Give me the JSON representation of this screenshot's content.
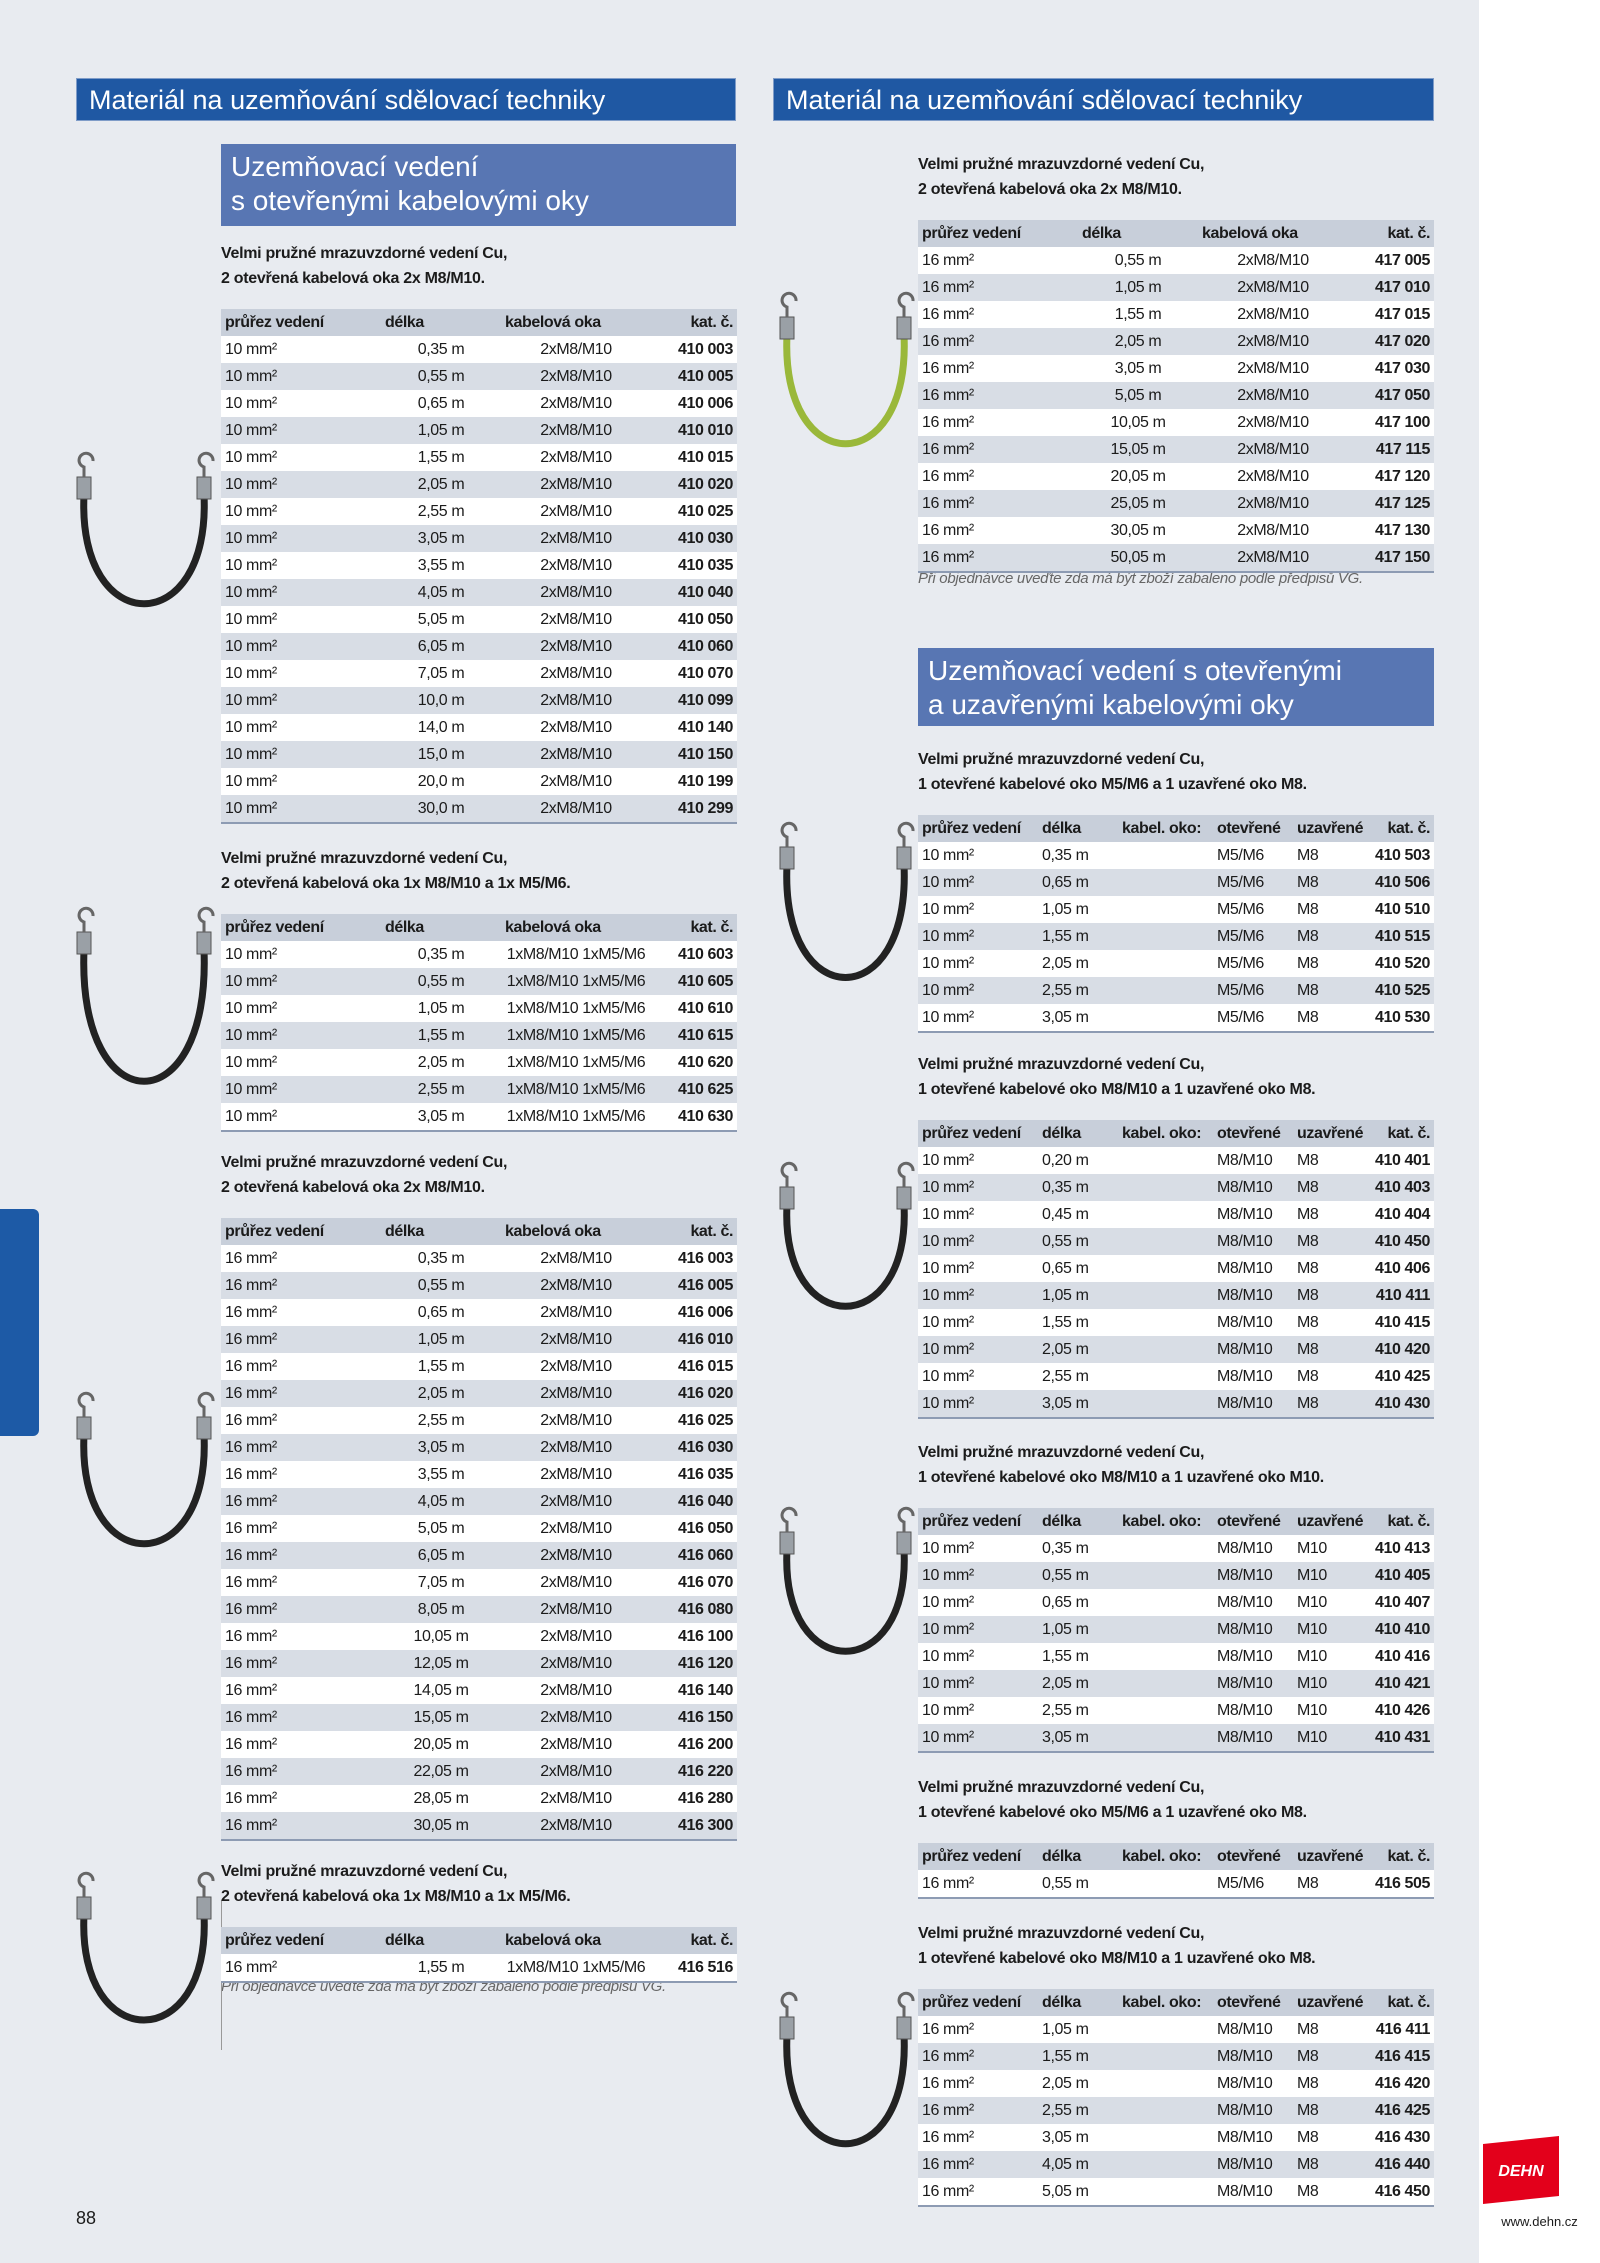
{
  "header": {
    "left_title": "Materiál na uzemňování sdělovací techniky",
    "right_title": "Materiál na uzemňování sdělovací techniky"
  },
  "left": {
    "heading": [
      "Uzemňovací vedení",
      "s otevřenými kabelovými oky"
    ],
    "tables": [
      {
        "description": [
          "Velmi pružné mrazuvzdorné vedení Cu,",
          "2 otevřená kabelová oka 2x M8/M10."
        ],
        "columns": [
          "průřez vedení",
          "délka",
          "kabelová oka",
          "kat. č."
        ],
        "rows": [
          [
            "10 mm²",
            "0,35 m",
            "2xM8/M10",
            "410 003"
          ],
          [
            "10 mm²",
            "0,55 m",
            "2xM8/M10",
            "410 005"
          ],
          [
            "10 mm²",
            "0,65 m",
            "2xM8/M10",
            "410 006"
          ],
          [
            "10 mm²",
            "1,05 m",
            "2xM8/M10",
            "410 010"
          ],
          [
            "10 mm²",
            "1,55 m",
            "2xM8/M10",
            "410 015"
          ],
          [
            "10 mm²",
            "2,05 m",
            "2xM8/M10",
            "410 020"
          ],
          [
            "10 mm²",
            "2,55 m",
            "2xM8/M10",
            "410 025"
          ],
          [
            "10 mm²",
            "3,05 m",
            "2xM8/M10",
            "410 030"
          ],
          [
            "10 mm²",
            "3,55 m",
            "2xM8/M10",
            "410 035"
          ],
          [
            "10 mm²",
            "4,05 m",
            "2xM8/M10",
            "410 040"
          ],
          [
            "10 mm²",
            "5,05 m",
            "2xM8/M10",
            "410 050"
          ],
          [
            "10 mm²",
            "6,05 m",
            "2xM8/M10",
            "410 060"
          ],
          [
            "10 mm²",
            "7,05 m",
            "2xM8/M10",
            "410 070"
          ],
          [
            "10 mm²",
            "10,0 m",
            "2xM8/M10",
            "410 099"
          ],
          [
            "10 mm²",
            "14,0 m",
            "2xM8/M10",
            "410 140"
          ],
          [
            "10 mm²",
            "15,0 m",
            "2xM8/M10",
            "410 150"
          ],
          [
            "10 mm²",
            "20,0 m",
            "2xM8/M10",
            "410 199"
          ],
          [
            "10 mm²",
            "30,0 m",
            "2xM8/M10",
            "410 299"
          ]
        ]
      },
      {
        "description": [
          "Velmi pružné mrazuvzdorné vedení Cu,",
          "2 otevřená kabelová oka 1x M8/M10 a 1x M5/M6."
        ],
        "columns": [
          "průřez vedení",
          "délka",
          "kabelová oka",
          "kat. č."
        ],
        "rows": [
          [
            "10 mm²",
            "0,35 m",
            "1xM8/M10 1xM5/M6",
            "410 603"
          ],
          [
            "10 mm²",
            "0,55 m",
            "1xM8/M10 1xM5/M6",
            "410 605"
          ],
          [
            "10 mm²",
            "1,05 m",
            "1xM8/M10 1xM5/M6",
            "410 610"
          ],
          [
            "10 mm²",
            "1,55 m",
            "1xM8/M10 1xM5/M6",
            "410 615"
          ],
          [
            "10 mm²",
            "2,05 m",
            "1xM8/M10 1xM5/M6",
            "410 620"
          ],
          [
            "10 mm²",
            "2,55 m",
            "1xM8/M10 1xM5/M6",
            "410 625"
          ],
          [
            "10 mm²",
            "3,05 m",
            "1xM8/M10 1xM5/M6",
            "410 630"
          ]
        ]
      },
      {
        "description": [
          "Velmi pružné mrazuvzdorné vedení Cu,",
          "2 otevřená kabelová oka 2x M8/M10."
        ],
        "columns": [
          "průřez vedení",
          "délka",
          "kabelová oka",
          "kat. č."
        ],
        "rows": [
          [
            "16 mm²",
            "0,35 m",
            "2xM8/M10",
            "416 003"
          ],
          [
            "16 mm²",
            "0,55 m",
            "2xM8/M10",
            "416 005"
          ],
          [
            "16 mm²",
            "0,65 m",
            "2xM8/M10",
            "416 006"
          ],
          [
            "16 mm²",
            "1,05 m",
            "2xM8/M10",
            "416 010"
          ],
          [
            "16 mm²",
            "1,55 m",
            "2xM8/M10",
            "416 015"
          ],
          [
            "16 mm²",
            "2,05 m",
            "2xM8/M10",
            "416 020"
          ],
          [
            "16 mm²",
            "2,55 m",
            "2xM8/M10",
            "416 025"
          ],
          [
            "16 mm²",
            "3,05 m",
            "2xM8/M10",
            "416 030"
          ],
          [
            "16 mm²",
            "3,55 m",
            "2xM8/M10",
            "416 035"
          ],
          [
            "16 mm²",
            "4,05 m",
            "2xM8/M10",
            "416 040"
          ],
          [
            "16 mm²",
            "5,05 m",
            "2xM8/M10",
            "416 050"
          ],
          [
            "16 mm²",
            "6,05 m",
            "2xM8/M10",
            "416 060"
          ],
          [
            "16 mm²",
            "7,05 m",
            "2xM8/M10",
            "416 070"
          ],
          [
            "16 mm²",
            "8,05 m",
            "2xM8/M10",
            "416 080"
          ],
          [
            "16 mm²",
            "10,05 m",
            "2xM8/M10",
            "416 100"
          ],
          [
            "16 mm²",
            "12,05 m",
            "2xM8/M10",
            "416 120"
          ],
          [
            "16 mm²",
            "14,05 m",
            "2xM8/M10",
            "416 140"
          ],
          [
            "16 mm²",
            "15,05 m",
            "2xM8/M10",
            "416 150"
          ],
          [
            "16 mm²",
            "20,05 m",
            "2xM8/M10",
            "416 200"
          ],
          [
            "16 mm²",
            "22,05 m",
            "2xM8/M10",
            "416 220"
          ],
          [
            "16 mm²",
            "28,05 m",
            "2xM8/M10",
            "416 280"
          ],
          [
            "16 mm²",
            "30,05 m",
            "2xM8/M10",
            "416 300"
          ]
        ]
      },
      {
        "description": [
          "Velmi pružné mrazuvzdorné vedení Cu,",
          "2 otevřená kabelová oka 1x M8/M10 a 1x M5/M6."
        ],
        "columns": [
          "průřez vedení",
          "délka",
          "kabelová oka",
          "kat. č."
        ],
        "rows": [
          [
            "16 mm²",
            "1,55 m",
            "1xM8/M10 1xM5/M6",
            "416 516"
          ]
        ]
      }
    ],
    "note": "Při objednávce uveďte zda má být zboží zabaleno podle předpisů VG."
  },
  "right": {
    "tables": [
      {
        "description": [
          "Velmi pružné mrazuvzdorné vedení Cu,",
          "2 otevřená kabelová oka 2x M8/M10."
        ],
        "columns": [
          "průřez vedení",
          "délka",
          "kabelová oka",
          "kat. č."
        ],
        "rows": [
          [
            "16 mm²",
            "0,55 m",
            "2xM8/M10",
            "417 005"
          ],
          [
            "16 mm²",
            "1,05 m",
            "2xM8/M10",
            "417 010"
          ],
          [
            "16 mm²",
            "1,55 m",
            "2xM8/M10",
            "417 015"
          ],
          [
            "16 mm²",
            "2,05 m",
            "2xM8/M10",
            "417 020"
          ],
          [
            "16 mm²",
            "3,05 m",
            "2xM8/M10",
            "417 030"
          ],
          [
            "16 mm²",
            "5,05 m",
            "2xM8/M10",
            "417 050"
          ],
          [
            "16 mm²",
            "10,05 m",
            "2xM8/M10",
            "417 100"
          ],
          [
            "16 mm²",
            "15,05 m",
            "2xM8/M10",
            "417 115"
          ],
          [
            "16 mm²",
            "20,05 m",
            "2xM8/M10",
            "417 120"
          ],
          [
            "16 mm²",
            "25,05 m",
            "2xM8/M10",
            "417 125"
          ],
          [
            "16 mm²",
            "30,05 m",
            "2xM8/M10",
            "417 130"
          ],
          [
            "16 mm²",
            "50,05 m",
            "2xM8/M10",
            "417 150"
          ]
        ]
      },
      {
        "description": [
          "Velmi pružné mrazuvzdorné vedení Cu,",
          "1 otevřené kabelové oko M5/M6 a 1 uzavřené oko M8."
        ],
        "columns": [
          "průřez vedení",
          "délka",
          "kabel. oko:",
          "otevřené",
          "uzavřené",
          "kat. č."
        ],
        "rows": [
          [
            "10 mm²",
            "0,35 m",
            "M5/M6",
            "M8",
            "410 503"
          ],
          [
            "10 mm²",
            "0,65 m",
            "M5/M6",
            "M8",
            "410 506"
          ],
          [
            "10 mm²",
            "1,05 m",
            "M5/M6",
            "M8",
            "410 510"
          ],
          [
            "10 mm²",
            "1,55 m",
            "M5/M6",
            "M8",
            "410 515"
          ],
          [
            "10 mm²",
            "2,05 m",
            "M5/M6",
            "M8",
            "410 520"
          ],
          [
            "10 mm²",
            "2,55 m",
            "M5/M6",
            "M8",
            "410 525"
          ],
          [
            "10 mm²",
            "3,05 m",
            "M5/M6",
            "M8",
            "410 530"
          ]
        ]
      },
      {
        "description": [
          "Velmi pružné mrazuvzdorné vedení Cu,",
          "1 otevřené kabelové oko M8/M10 a 1 uzavřené oko M8."
        ],
        "columns": [
          "průřez vedení",
          "délka",
          "kabel. oko:",
          "otevřené",
          "uzavřené",
          "kat. č."
        ],
        "rows": [
          [
            "10 mm²",
            "0,20 m",
            "M8/M10",
            "M8",
            "410 401"
          ],
          [
            "10 mm²",
            "0,35 m",
            "M8/M10",
            "M8",
            "410 403"
          ],
          [
            "10 mm²",
            "0,45 m",
            "M8/M10",
            "M8",
            "410 404"
          ],
          [
            "10 mm²",
            "0,55 m",
            "M8/M10",
            "M8",
            "410 450"
          ],
          [
            "10 mm²",
            "0,65 m",
            "M8/M10",
            "M8",
            "410 406"
          ],
          [
            "10 mm²",
            "1,05 m",
            "M8/M10",
            "M8",
            "410 411"
          ],
          [
            "10 mm²",
            "1,55 m",
            "M8/M10",
            "M8",
            "410 415"
          ],
          [
            "10 mm²",
            "2,05 m",
            "M8/M10",
            "M8",
            "410 420"
          ],
          [
            "10 mm²",
            "2,55 m",
            "M8/M10",
            "M8",
            "410 425"
          ],
          [
            "10 mm²",
            "3,05 m",
            "M8/M10",
            "M8",
            "410 430"
          ]
        ]
      },
      {
        "description": [
          "Velmi pružné mrazuvzdorné vedení Cu,",
          "1 otevřené kabelové oko M8/M10 a 1 uzavřené oko M10."
        ],
        "columns": [
          "průřez vedení",
          "délka",
          "kabel. oko:",
          "otevřené",
          "uzavřené",
          "kat. č."
        ],
        "rows": [
          [
            "10 mm²",
            "0,35 m",
            "M8/M10",
            "M10",
            "410 413"
          ],
          [
            "10 mm²",
            "0,55 m",
            "M8/M10",
            "M10",
            "410 405"
          ],
          [
            "10 mm²",
            "0,65 m",
            "M8/M10",
            "M10",
            "410 407"
          ],
          [
            "10 mm²",
            "1,05 m",
            "M8/M10",
            "M10",
            "410 410"
          ],
          [
            "10 mm²",
            "1,55 m",
            "M8/M10",
            "M10",
            "410 416"
          ],
          [
            "10 mm²",
            "2,05 m",
            "M8/M10",
            "M10",
            "410 421"
          ],
          [
            "10 mm²",
            "2,55 m",
            "M8/M10",
            "M10",
            "410 426"
          ],
          [
            "10 mm²",
            "3,05 m",
            "M8/M10",
            "M10",
            "410 431"
          ]
        ]
      },
      {
        "description": [
          "Velmi pružné mrazuvzdorné vedení Cu,",
          "1 otevřené kabelové oko M5/M6 a 1 uzavřené oko M8."
        ],
        "columns": [
          "průřez vedení",
          "délka",
          "kabel. oko:",
          "otevřené",
          "uzavřené",
          "kat. č."
        ],
        "rows": [
          [
            "16 mm²",
            "0,55 m",
            "M5/M6",
            "M8",
            "416 505"
          ]
        ]
      },
      {
        "description": [
          "Velmi pružné mrazuvzdorné vedení Cu,",
          "1 otevřené kabelové oko M8/M10 a 1 uzavřené oko M8."
        ],
        "columns": [
          "průřez vedení",
          "délka",
          "kabel. oko:",
          "otevřené",
          "uzavřené",
          "kat. č."
        ],
        "rows": [
          [
            "16 mm²",
            "1,05 m",
            "M8/M10",
            "M8",
            "416 411"
          ],
          [
            "16 mm²",
            "1,55 m",
            "M8/M10",
            "M8",
            "416 415"
          ],
          [
            "16 mm²",
            "2,05 m",
            "M8/M10",
            "M8",
            "416 420"
          ],
          [
            "16 mm²",
            "2,55 m",
            "M8/M10",
            "M8",
            "416 425"
          ],
          [
            "16 mm²",
            "3,05 m",
            "M8/M10",
            "M8",
            "416 430"
          ],
          [
            "16 mm²",
            "4,05 m",
            "M8/M10",
            "M8",
            "416 440"
          ],
          [
            "16 mm²",
            "5,05 m",
            "M8/M10",
            "M8",
            "416 450"
          ]
        ]
      }
    ],
    "note": "Při objednávce uveďte zda má být zboží zabaleno podle předpisů VG.",
    "heading": [
      "Uzemňovací vedení s otevřenými",
      "a uzavřenými kabelovými oky"
    ]
  },
  "footer": {
    "page_number": "88",
    "url": "www.dehn.cz",
    "logo": "DEHN"
  }
}
